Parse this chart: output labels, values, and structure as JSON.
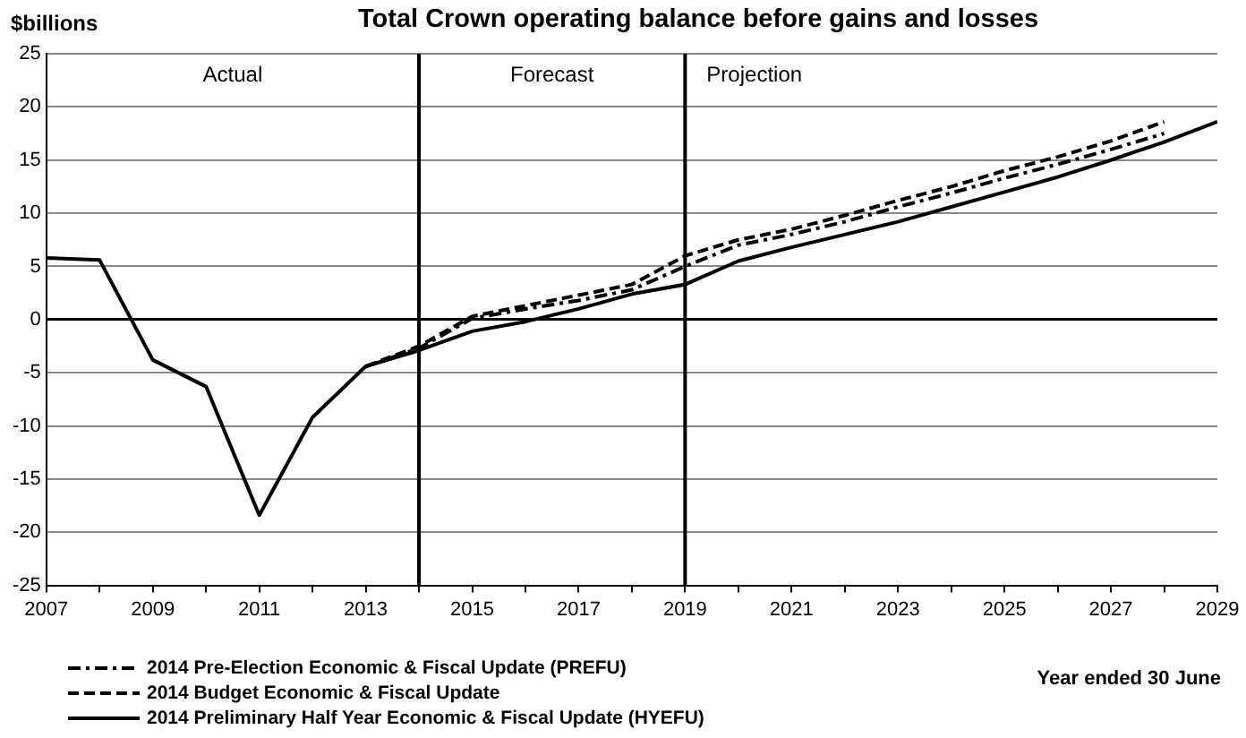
{
  "chart_data": {
    "type": "line",
    "title": "Total Crown operating balance before gains and losses",
    "ylabel": "$billions",
    "xlabel": "Year ended 30 June",
    "xlim": [
      2007,
      2029
    ],
    "xticks": [
      2007,
      {
        "value": 2008,
        "label": null
      },
      2009,
      {
        "value": 2010,
        "label": null
      },
      2011,
      {
        "value": 2012,
        "label": null
      },
      2013,
      {
        "value": 2014,
        "label": null
      },
      2015,
      {
        "value": 2016,
        "label": null
      },
      2017,
      {
        "value": 2018,
        "label": null
      },
      2019,
      {
        "value": 2020,
        "label": null
      },
      2021,
      {
        "value": 2022,
        "label": null
      },
      2023,
      {
        "value": 2024,
        "label": null
      },
      2025,
      {
        "value": 2026,
        "label": null
      },
      2027,
      {
        "value": 2028,
        "label": null
      },
      2029
    ],
    "ylim": [
      -25,
      25
    ],
    "yticks": [
      -25,
      -20,
      -15,
      -10,
      -5,
      0,
      5,
      10,
      15,
      20,
      25
    ],
    "grid": "y",
    "legend": "bottom left",
    "marker": "none",
    "series": [
      {
        "name": "2014 Pre-Election Economic & Fiscal Update (PREFU)",
        "color": "#000000",
        "line_style": "dashdot",
        "x": [
          2013,
          2014,
          2015,
          2016,
          2017,
          2018,
          2019,
          2020,
          2021,
          2022,
          2023,
          2024,
          2025,
          2026,
          2027,
          2028
        ],
        "values": [
          -4.4,
          -2.7,
          0.1,
          1.0,
          1.8,
          2.8,
          5.0,
          7.0,
          8.0,
          9.2,
          10.6,
          11.9,
          13.3,
          14.6,
          16.0,
          17.5
        ]
      },
      {
        "name": "2014 Budget Economic & Fiscal Update",
        "color": "#000000",
        "line_style": "dashed",
        "x": [
          2013,
          2014,
          2015,
          2016,
          2017,
          2018,
          2019,
          2020,
          2021,
          2022,
          2023,
          2024,
          2025,
          2026,
          2027,
          2028
        ],
        "values": [
          -4.4,
          -2.5,
          0.3,
          1.3,
          2.3,
          3.3,
          6.0,
          7.5,
          8.5,
          9.8,
          11.2,
          12.5,
          14.0,
          15.3,
          16.8,
          18.6
        ]
      },
      {
        "name": "2014 Preliminary Half Year Economic & Fiscal Update (HYEFU)",
        "color": "#000000",
        "line_style": "solid",
        "x": [
          2007,
          2008,
          2009,
          2010,
          2011,
          2012,
          2013,
          2014,
          2015,
          2016,
          2017,
          2018,
          2019,
          2020,
          2021,
          2022,
          2023,
          2024,
          2025,
          2026,
          2027,
          2028,
          2029
        ],
        "values": [
          5.8,
          5.6,
          -3.8,
          -6.3,
          -18.4,
          -9.2,
          -4.4,
          -2.9,
          -1.1,
          -0.2,
          1.0,
          2.4,
          3.3,
          5.5,
          6.8,
          8.0,
          9.2,
          10.6,
          12.0,
          13.4,
          15.0,
          16.7,
          18.6
        ]
      }
    ],
    "ref_lines": [
      {
        "axis": "x",
        "value": 2014,
        "color": "#000000"
      },
      {
        "axis": "x",
        "value": 2019,
        "color": "#000000"
      }
    ],
    "annotations": [
      "Actual",
      "Forecast",
      "Projection"
    ]
  }
}
